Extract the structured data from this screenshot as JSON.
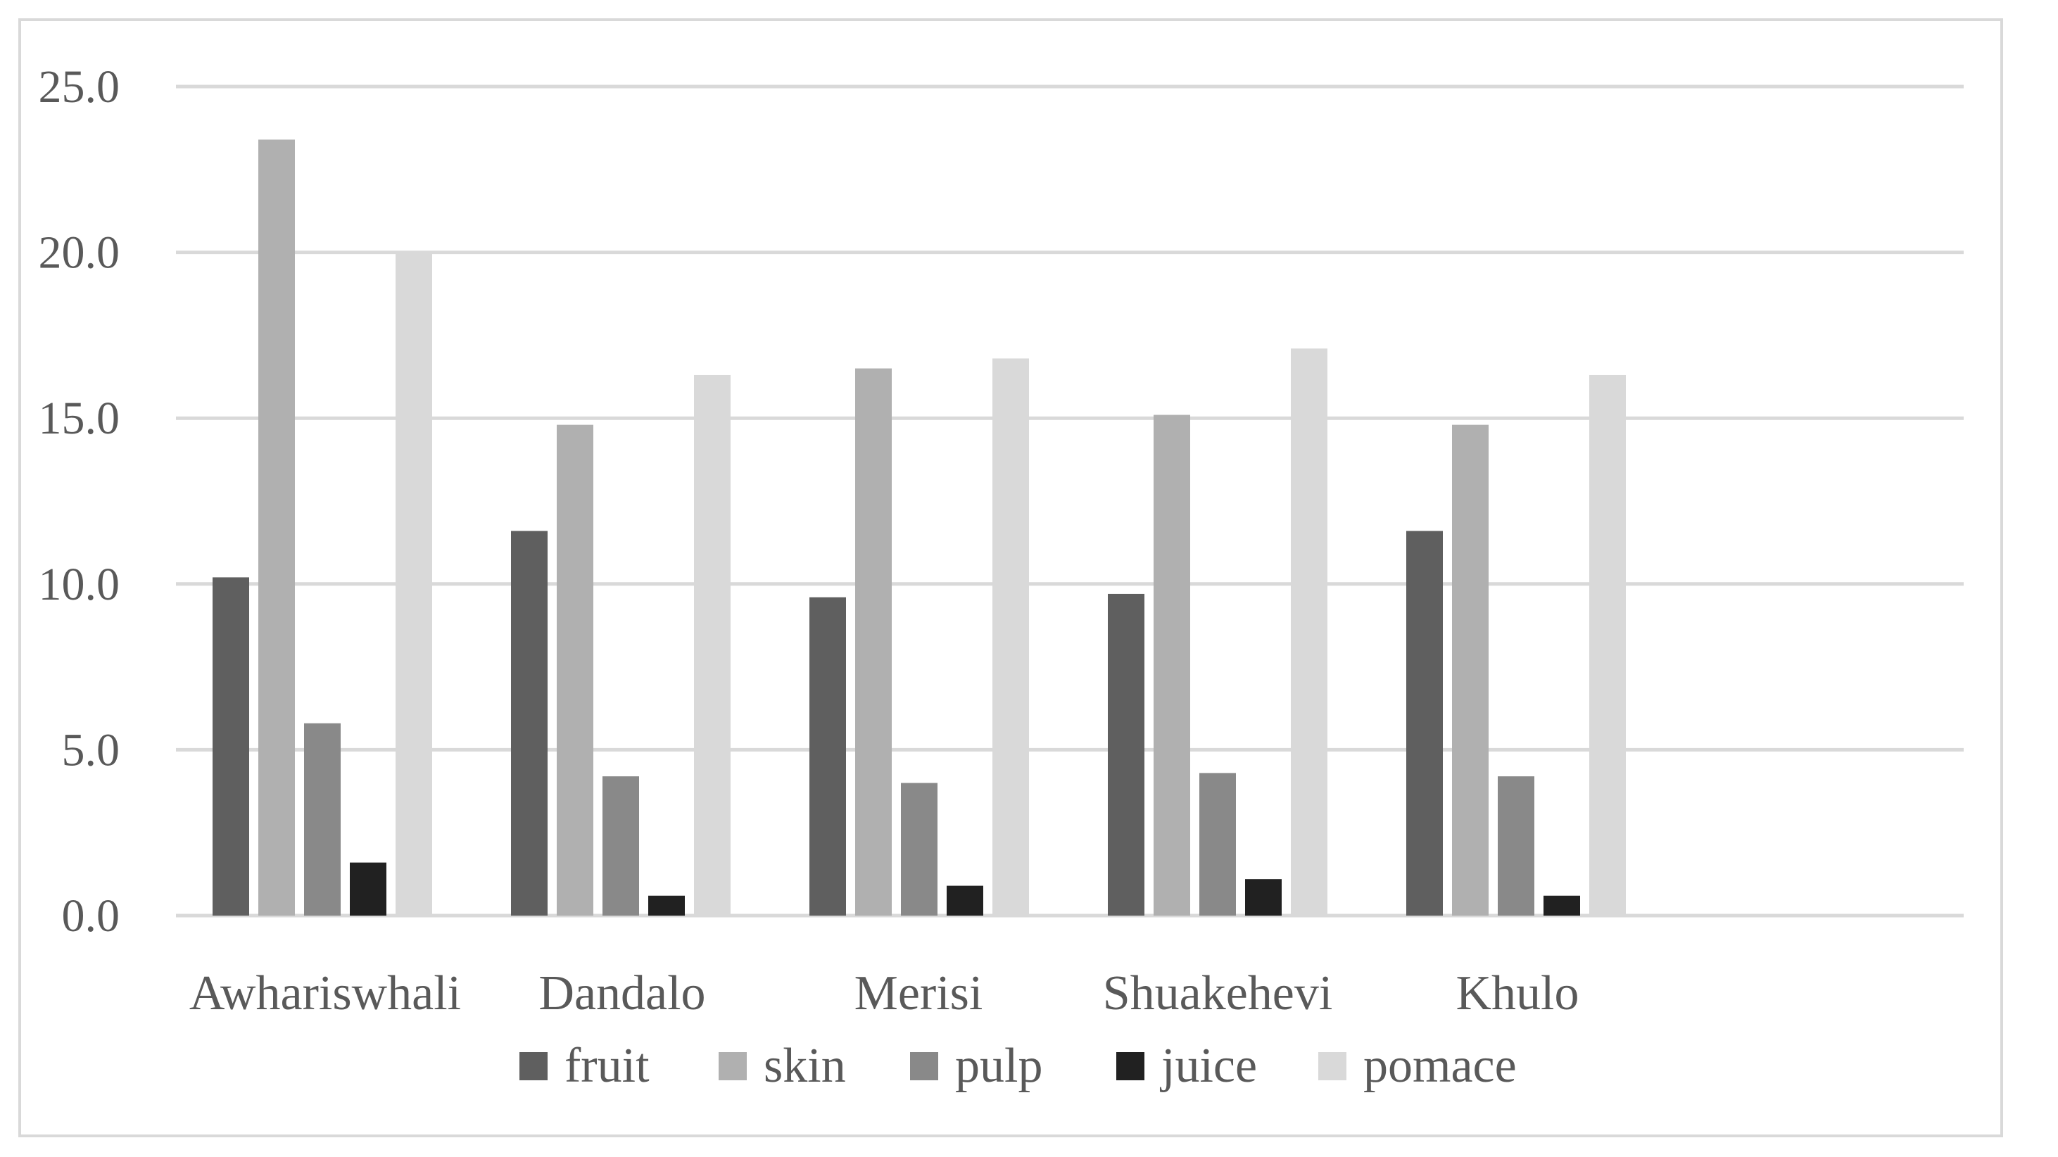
{
  "chart_data": {
    "type": "bar",
    "title": "",
    "xlabel": "",
    "ylabel": "",
    "categories": [
      "Awhariswhali",
      "Dandalo",
      "Merisi",
      "Shuakehevi",
      "Khulo"
    ],
    "ylim": [
      0,
      25
    ],
    "yticks": [
      "0.0",
      "5.0",
      "10.0",
      "15.0",
      "20.0",
      "25.0"
    ],
    "ytick_values": [
      0,
      5,
      10,
      15,
      20,
      25
    ],
    "grid": true,
    "legend_position": "bottom",
    "series": [
      {
        "name": "fruit",
        "color": "#5f5f5f",
        "values": [
          10.2,
          11.6,
          9.6,
          9.7,
          11.6
        ]
      },
      {
        "name": "skin",
        "color": "#b0b0b0",
        "values": [
          23.4,
          14.8,
          16.5,
          15.1,
          14.8
        ]
      },
      {
        "name": "pulp",
        "color": "#898989",
        "values": [
          5.8,
          4.2,
          4.0,
          4.3,
          4.2
        ]
      },
      {
        "name": "juice",
        "color": "#212121",
        "values": [
          1.6,
          0.6,
          0.9,
          1.1,
          0.6
        ]
      },
      {
        "name": "pomace",
        "color": "#d9d9d9",
        "values": [
          20.0,
          16.3,
          16.8,
          17.1,
          16.3
        ]
      }
    ]
  }
}
